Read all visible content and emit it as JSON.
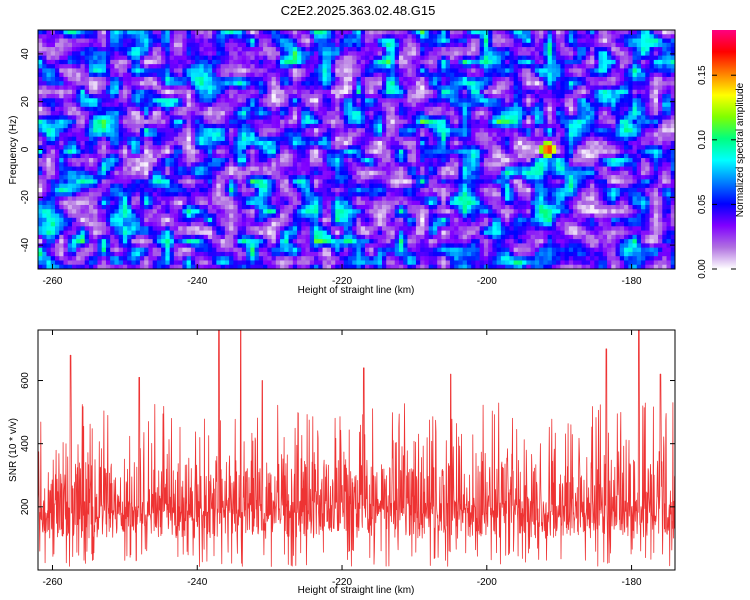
{
  "title": "C2E2.2025.363.02.48.G15",
  "chart_data": [
    {
      "type": "heatmap",
      "xlabel": "Height of straight line (km)",
      "ylabel": "Frequency (Hz)",
      "xlim": [
        -262,
        -174
      ],
      "ylim": [
        -50,
        50
      ],
      "x_ticks": [
        -260,
        -240,
        -220,
        -200,
        -180
      ],
      "y_ticks": [
        -40,
        -20,
        0,
        20,
        40
      ],
      "colorbar": {
        "label": "Normalized spectral amplitude",
        "range": [
          0.0,
          0.185
        ],
        "ticks": [
          0.0,
          0.05,
          0.1,
          0.15
        ],
        "tick_labels": [
          "0.00",
          "0.05",
          "0.10",
          "0.15"
        ],
        "colormap": [
          "#ffffff",
          "#b070e0",
          "#8000ff",
          "#0000ff",
          "#0080ff",
          "#00ffff",
          "#00ff80",
          "#80ff00",
          "#ffff00",
          "#ff8000",
          "#ff0000",
          "#ff0080"
        ]
      },
      "peak": {
        "x": -191.5,
        "y": 0,
        "value": 0.18
      },
      "background_value_range": [
        0.0,
        0.08
      ]
    },
    {
      "type": "line",
      "xlabel": "Height of straight line (km)",
      "ylabel": "SNR (10 * v/v)",
      "xlim": [
        -262,
        -174
      ],
      "ylim": [
        0,
        760
      ],
      "x_ticks": [
        -260,
        -240,
        -220,
        -200,
        -180
      ],
      "y_ticks": [
        200,
        400,
        600
      ],
      "series_color": "#ee3333",
      "typical_range": [
        100,
        350
      ],
      "peaks": [
        {
          "x": -257.5,
          "y": 680
        },
        {
          "x": -248,
          "y": 610
        },
        {
          "x": -237,
          "y": 760
        },
        {
          "x": -234,
          "y": 760
        },
        {
          "x": -231,
          "y": 600
        },
        {
          "x": -217,
          "y": 640
        },
        {
          "x": -205,
          "y": 620
        },
        {
          "x": -183.5,
          "y": 700
        },
        {
          "x": -179,
          "y": 760
        },
        {
          "x": -176,
          "y": 620
        }
      ]
    }
  ]
}
